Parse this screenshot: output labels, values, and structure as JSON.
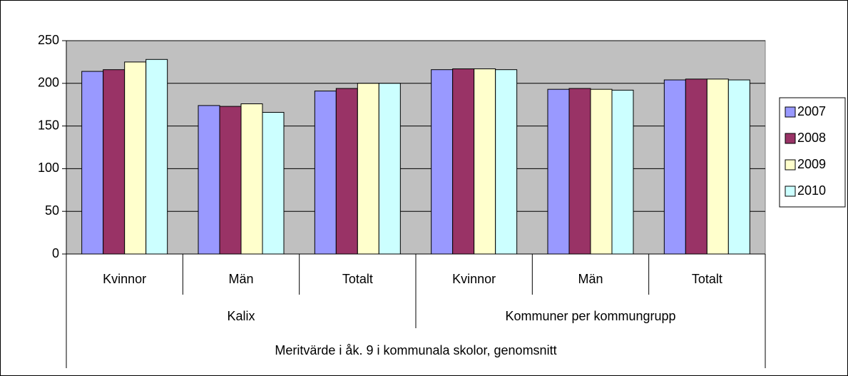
{
  "chart_data": {
    "type": "bar",
    "x_label": "Meritvärde i åk. 9 i kommunala skolor, genomsnitt",
    "groups": [
      {
        "name": "Kalix",
        "categories": [
          "Kvinnor",
          "Män",
          "Totalt"
        ]
      },
      {
        "name": "Kommuner per kommungrupp",
        "categories": [
          "Kvinnor",
          "Män",
          "Totalt"
        ]
      }
    ],
    "series": [
      {
        "name": "2007",
        "color": "#9999ff",
        "values": [
          214,
          174,
          191,
          216,
          193,
          204
        ]
      },
      {
        "name": "2008",
        "color": "#993366",
        "values": [
          216,
          173,
          194,
          217,
          194,
          205
        ]
      },
      {
        "name": "2009",
        "color": "#ffffcc",
        "values": [
          225,
          176,
          200,
          217,
          193,
          205
        ]
      },
      {
        "name": "2010",
        "color": "#ccffff",
        "values": [
          228,
          166,
          200,
          216,
          192,
          204
        ]
      }
    ],
    "ylim": [
      0,
      250
    ],
    "yticks": [
      0,
      50,
      100,
      150,
      200,
      250
    ],
    "plot_background": "#c0c0c0",
    "legend": "right"
  }
}
